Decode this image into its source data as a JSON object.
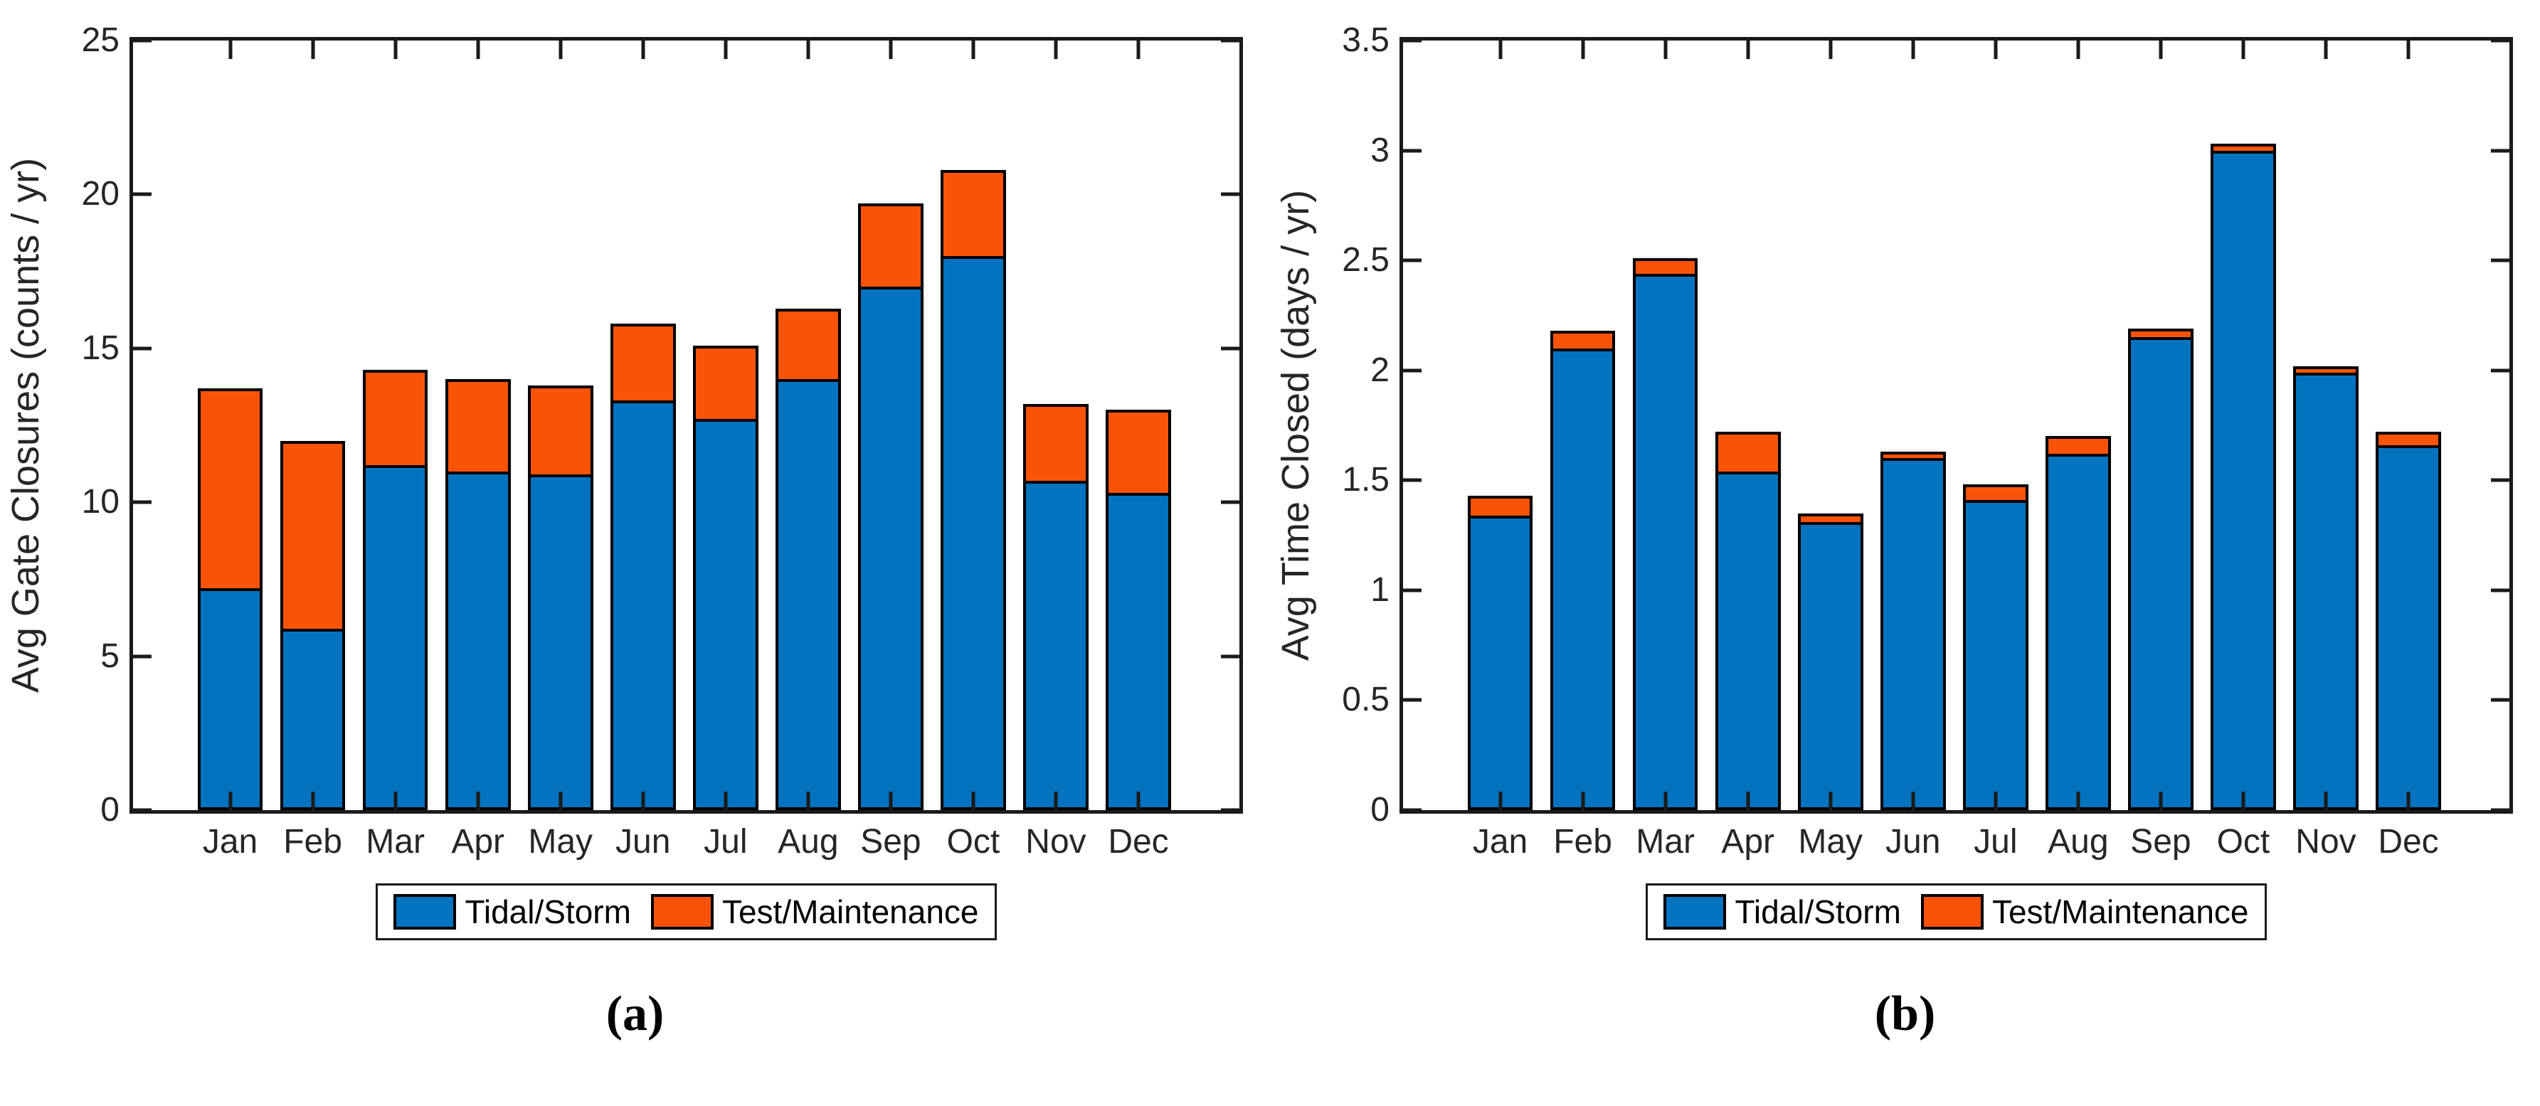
{
  "colors": {
    "tidal": "#0473BF",
    "test": "#F95307",
    "axis": "#1a1a1a",
    "bar_edge": "#000000"
  },
  "legend": {
    "tidal_label": "Tidal/Storm",
    "test_label": "Test/Maintenance"
  },
  "chart_data": [
    {
      "type": "bar",
      "stacked": true,
      "caption": "(a)",
      "title": "",
      "xlabel": "",
      "ylabel": "Avg Gate Closures (counts / yr)",
      "categories": [
        "Jan",
        "Feb",
        "Mar",
        "Apr",
        "May",
        "Jun",
        "Jul",
        "Aug",
        "Sep",
        "Oct",
        "Nov",
        "Dec"
      ],
      "series": [
        {
          "name": "Tidal/Storm",
          "values": [
            7.2,
            5.9,
            11.2,
            11.0,
            10.9,
            13.3,
            12.7,
            14.0,
            17.0,
            18.0,
            10.7,
            10.3
          ]
        },
        {
          "name": "Test/Maintenance",
          "values": [
            6.5,
            6.1,
            3.1,
            3.0,
            2.9,
            2.5,
            2.4,
            2.3,
            2.7,
            2.8,
            2.5,
            2.7
          ]
        }
      ],
      "totals": [
        13.7,
        12.0,
        14.3,
        14.0,
        13.8,
        15.8,
        15.1,
        16.3,
        19.7,
        20.8,
        13.2,
        13.0
      ],
      "ylim": [
        0,
        25
      ],
      "yticks": [
        0,
        5,
        10,
        15,
        20,
        25
      ],
      "ytick_labels": [
        "0",
        "5",
        "10",
        "15",
        "20",
        "25"
      ],
      "grid": false,
      "legend_position": "below"
    },
    {
      "type": "bar",
      "stacked": true,
      "caption": "(b)",
      "title": "",
      "xlabel": "",
      "ylabel": "Avg Time Closed (days / yr)",
      "categories": [
        "Jan",
        "Feb",
        "Mar",
        "Apr",
        "May",
        "Jun",
        "Jul",
        "Aug",
        "Sep",
        "Oct",
        "Nov",
        "Dec"
      ],
      "series": [
        {
          "name": "Tidal/Storm",
          "values": [
            1.34,
            2.1,
            2.44,
            1.54,
            1.31,
            1.6,
            1.41,
            1.62,
            2.15,
            3.0,
            1.99,
            1.66
          ]
        },
        {
          "name": "Test/Maintenance",
          "values": [
            0.09,
            0.08,
            0.07,
            0.18,
            0.04,
            0.03,
            0.07,
            0.08,
            0.04,
            0.03,
            0.03,
            0.06
          ]
        }
      ],
      "totals": [
        1.43,
        2.18,
        2.51,
        1.72,
        1.35,
        1.63,
        1.48,
        1.7,
        2.19,
        3.03,
        2.02,
        1.72
      ],
      "ylim": [
        0,
        3.5
      ],
      "yticks": [
        0,
        0.5,
        1,
        1.5,
        2,
        2.5,
        3,
        3.5
      ],
      "ytick_labels": [
        "0",
        "0.5",
        "1",
        "1.5",
        "2",
        "2.5",
        "3",
        "3.5"
      ],
      "grid": false,
      "legend_position": "below"
    }
  ]
}
